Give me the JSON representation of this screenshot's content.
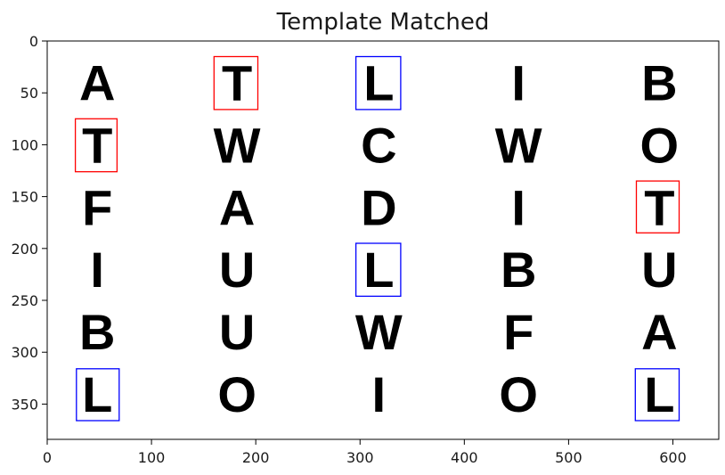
{
  "chart_data": {
    "type": "image",
    "title": "Template Matched",
    "xlabel": "",
    "ylabel": "",
    "xlim": [
      0,
      644
    ],
    "ylim": [
      384,
      0
    ],
    "xticks": [
      0,
      100,
      200,
      300,
      400,
      500,
      600
    ],
    "yticks": [
      0,
      50,
      100,
      150,
      200,
      250,
      300,
      350
    ],
    "grid": false,
    "legend": "none",
    "columns_x": [
      48,
      182,
      318,
      452,
      587
    ],
    "rows_y": [
      40,
      100,
      160,
      220,
      280,
      340
    ],
    "letters": [
      [
        "A",
        "T",
        "L",
        "I",
        "B"
      ],
      [
        "T",
        "W",
        "C",
        "W",
        "O"
      ],
      [
        "F",
        "A",
        "D",
        "I",
        "T"
      ],
      [
        "I",
        "U",
        "L",
        "B",
        "U"
      ],
      [
        "B",
        "U",
        "W",
        "F",
        "A"
      ],
      [
        "L",
        "O",
        "I",
        "O",
        "L"
      ]
    ],
    "boxes": [
      {
        "color": "#ff0000",
        "x0": 160,
        "y0": 15,
        "x1": 202,
        "y1": 66
      },
      {
        "color": "#0000ff",
        "x0": 296,
        "y0": 15,
        "x1": 339,
        "y1": 66
      },
      {
        "color": "#ff0000",
        "x0": 27,
        "y0": 75,
        "x1": 67,
        "y1": 126
      },
      {
        "color": "#ff0000",
        "x0": 565,
        "y0": 135,
        "x1": 606,
        "y1": 185
      },
      {
        "color": "#0000ff",
        "x0": 296,
        "y0": 195,
        "x1": 339,
        "y1": 246
      },
      {
        "color": "#0000ff",
        "x0": 28,
        "y0": 316,
        "x1": 69,
        "y1": 366
      },
      {
        "color": "#0000ff",
        "x0": 564,
        "y0": 316,
        "x1": 606,
        "y1": 366
      }
    ]
  }
}
